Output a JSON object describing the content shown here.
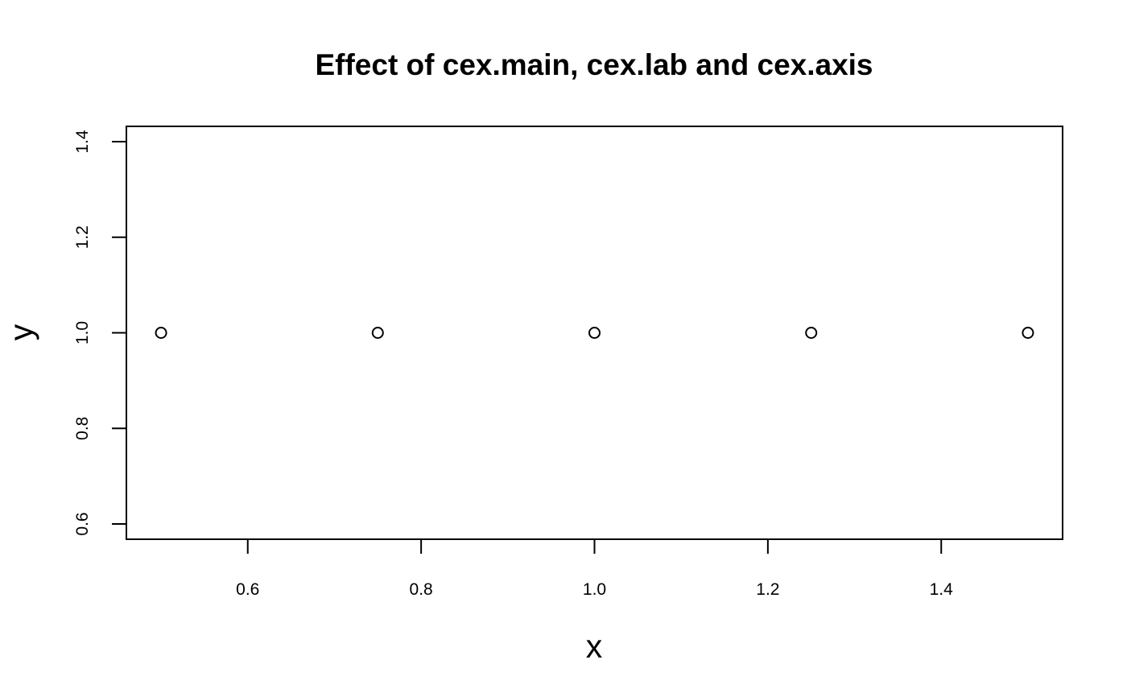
{
  "chart_data": {
    "type": "scatter",
    "title": "Effect of cex.main, cex.lab and cex.axis",
    "xlabel": "x",
    "ylabel": "y",
    "x": [
      0.5,
      0.75,
      1.0,
      1.25,
      1.5
    ],
    "y": [
      1,
      1,
      1,
      1,
      1
    ],
    "xlim": [
      0.46,
      1.54
    ],
    "ylim": [
      0.568,
      1.432
    ],
    "x_ticks": [
      0.6,
      0.8,
      1.0,
      1.2,
      1.4
    ],
    "x_tick_labels": [
      "0.6",
      "0.8",
      "1.0",
      "1.2",
      "1.4"
    ],
    "y_ticks": [
      0.6,
      0.8,
      1.0,
      1.2,
      1.4
    ],
    "y_tick_labels": [
      "0.6",
      "0.8",
      "1.0",
      "1.2",
      "1.4"
    ],
    "marker": "open-circle",
    "grid": false,
    "legend": "none"
  }
}
